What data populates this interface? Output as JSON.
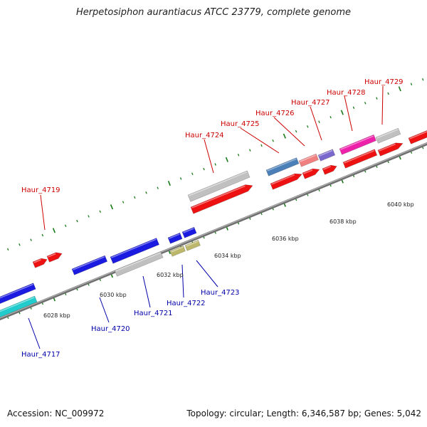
{
  "title": "Herpetosiphon aurantiacus ATCC 23779, complete genome",
  "footer": {
    "accession": "Accession: NC_009972",
    "topology": "Topology: circular; Length: 6,346,587 bp; Genes: 5,042"
  },
  "scale_labels": [
    "6028 kbp",
    "6030 kbp",
    "6032 kbp",
    "6034 kbp",
    "6036 kbp",
    "6038 kbp",
    "6040 kbp"
  ],
  "genes_forward": [
    "Haur_4719",
    "Haur_4724",
    "Haur_4725",
    "Haur_4726",
    "Haur_4727",
    "Haur_4728",
    "Haur_4729"
  ],
  "genes_reverse": [
    "Haur_4717",
    "Haur_4720",
    "Haur_4721",
    "Haur_4722",
    "Haur_4723"
  ],
  "colors": {
    "forward_label": "#cc0000",
    "reverse_label": "#0000aa",
    "backbone": "#8c8c8c",
    "tick": "#1a7a1a",
    "red": "#ee1111",
    "blue": "#1a1ae0",
    "gray": "#c0c0c0",
    "cyan": "#22cccc",
    "steelblue": "#4a7fb8",
    "pink": "#f08080",
    "purple": "#7b68cc",
    "magenta": "#ee22aa",
    "olive": "#bdb76b"
  }
}
